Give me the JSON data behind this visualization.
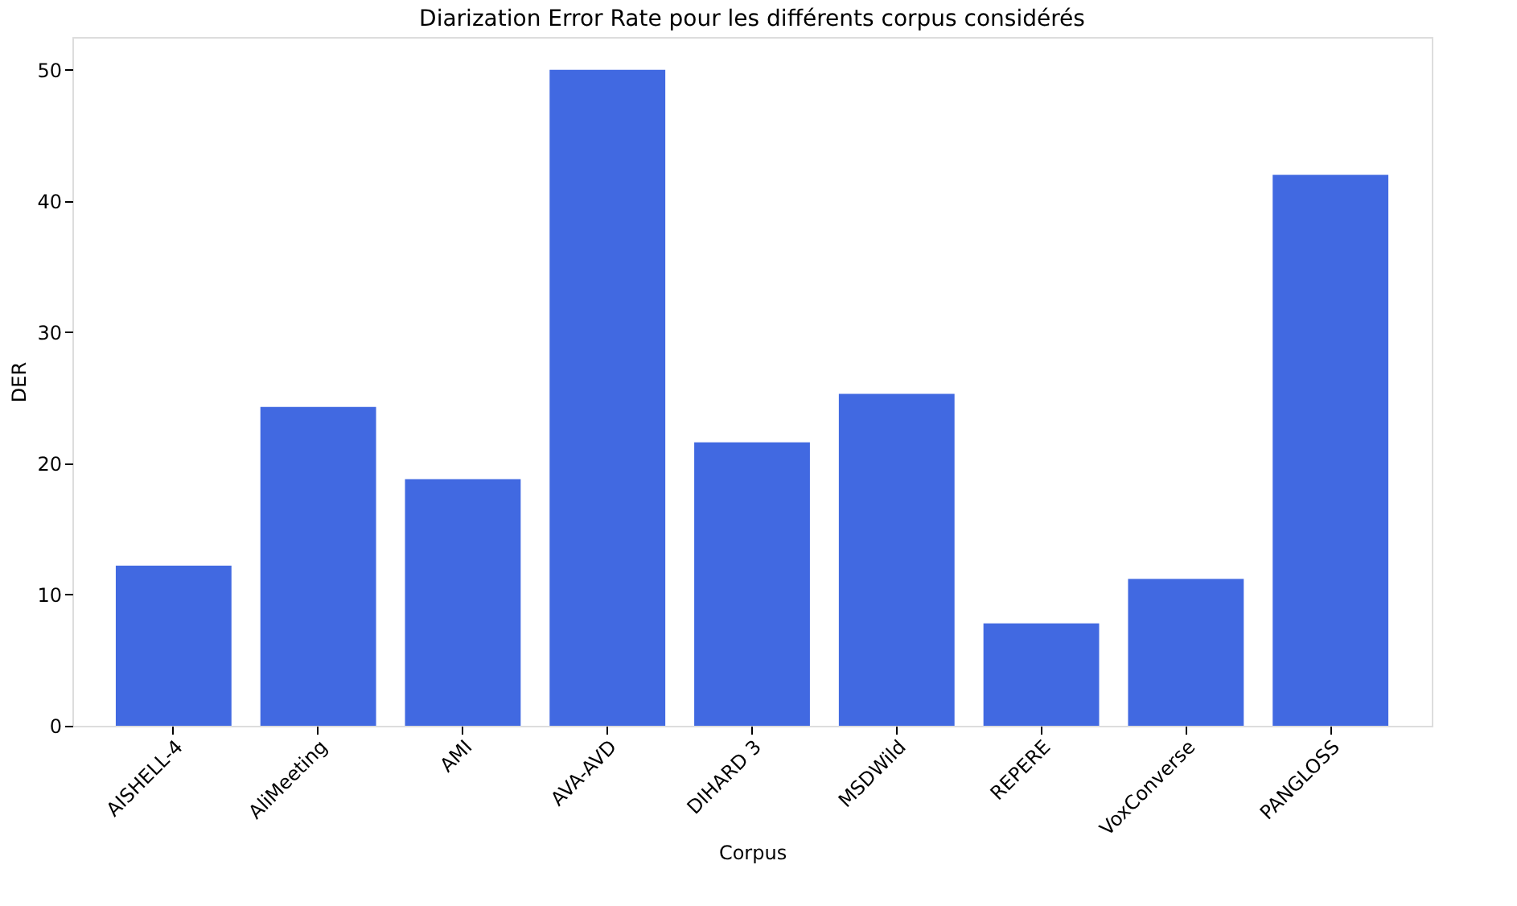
{
  "chart_data": {
    "type": "bar",
    "title": "Diarization Error Rate pour les différents corpus considérés",
    "xlabel": "Corpus",
    "ylabel": "DER",
    "categories": [
      "AISHELL-4",
      "AliMeeting",
      "AMI",
      "AVA-AVD",
      "DIHARD 3",
      "MSDWild",
      "REPERE",
      "VoxConverse",
      "PANGLOSS"
    ],
    "values": [
      12.2,
      24.3,
      18.8,
      50.0,
      21.6,
      25.3,
      7.8,
      11.2,
      42.0
    ],
    "color": "#4169e1",
    "ylim": [
      0,
      52.5
    ],
    "yticks": [
      0,
      10,
      20,
      30,
      40,
      50
    ],
    "grid": false
  }
}
